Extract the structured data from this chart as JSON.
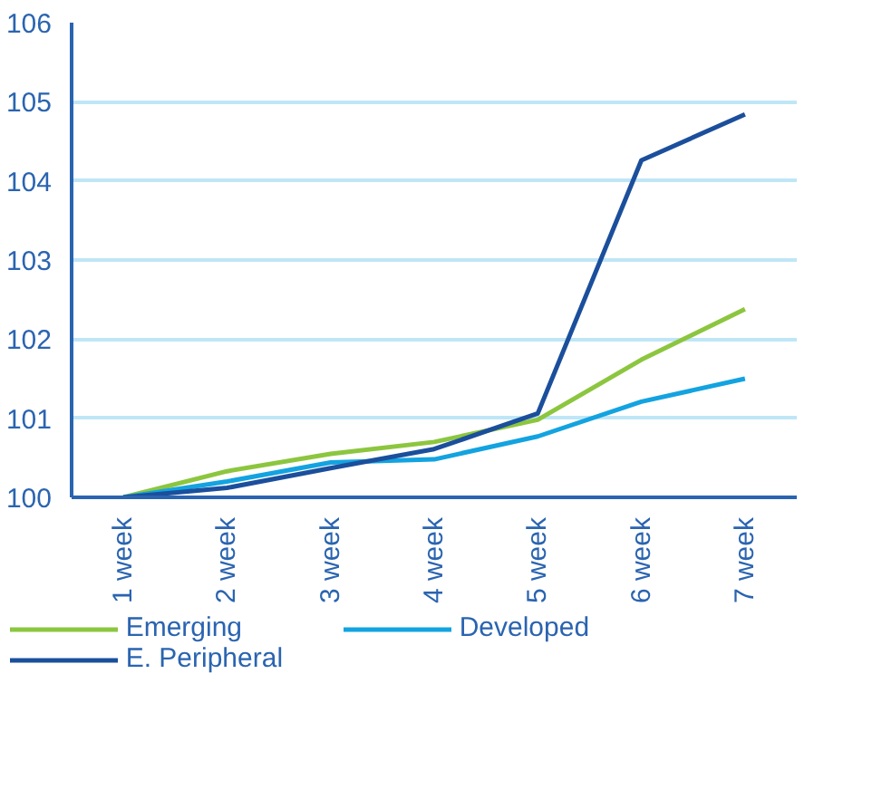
{
  "chart_data": {
    "type": "line",
    "categories": [
      "1 week",
      "2 week",
      "3 week",
      "4 week",
      "5 week",
      "6 week",
      "7 week"
    ],
    "series": [
      {
        "name": "Emerging",
        "color": "#8cc63f",
        "values": [
          100,
          100.33,
          100.55,
          100.7,
          100.98,
          101.74,
          102.38
        ]
      },
      {
        "name": "Developed",
        "color": "#13a3e0",
        "values": [
          100,
          100.2,
          100.44,
          100.48,
          100.77,
          101.21,
          101.5
        ]
      },
      {
        "name": "E. Peripheral",
        "color": "#1b4f9c",
        "values": [
          100,
          100.12,
          100.37,
          100.61,
          101.06,
          104.26,
          104.84
        ]
      }
    ],
    "ylim": [
      100,
      106
    ],
    "yticks": [
      100,
      101,
      102,
      103,
      104,
      105,
      106
    ],
    "grid": "y",
    "legend": "bottom",
    "marker": "none",
    "line_style": "solid"
  }
}
